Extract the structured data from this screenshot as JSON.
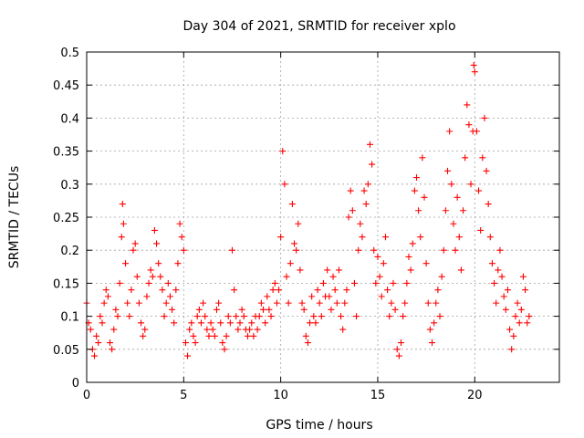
{
  "chart_data": {
    "type": "scatter",
    "title": "Day 304 of 2021, SRMTID for receiver xplo",
    "xlabel": "GPS time / hours",
    "ylabel": "SRMTID / TECUs",
    "xlim": [
      0,
      24.36
    ],
    "ylim": [
      0,
      0.5
    ],
    "x_ticks": [
      0,
      5,
      10,
      15,
      20
    ],
    "x_tick_labels": [
      "0",
      "5",
      "10",
      "15",
      "20"
    ],
    "y_ticks": [
      0,
      0.05,
      0.1,
      0.15,
      0.2,
      0.25,
      0.3,
      0.35,
      0.4,
      0.45,
      0.5
    ],
    "y_tick_labels": [
      "0",
      "0.05",
      "0.1",
      "0.15",
      "0.2",
      "0.25",
      "0.3",
      "0.35",
      "0.4",
      "0.45",
      "0.5"
    ],
    "grid": true,
    "marker": "+",
    "series": [
      {
        "name": "SRMTID",
        "color": "#ff0000",
        "points": [
          [
            0.0,
            0.12
          ],
          [
            0.1,
            0.09
          ],
          [
            0.2,
            0.08
          ],
          [
            0.3,
            0.05
          ],
          [
            0.4,
            0.04
          ],
          [
            0.5,
            0.07
          ],
          [
            0.6,
            0.06
          ],
          [
            0.7,
            0.1
          ],
          [
            0.8,
            0.09
          ],
          [
            0.9,
            0.12
          ],
          [
            1.0,
            0.14
          ],
          [
            1.1,
            0.13
          ],
          [
            1.2,
            0.06
          ],
          [
            1.3,
            0.05
          ],
          [
            1.4,
            0.08
          ],
          [
            1.5,
            0.11
          ],
          [
            1.6,
            0.1
          ],
          [
            1.7,
            0.15
          ],
          [
            1.8,
            0.22
          ],
          [
            1.85,
            0.27
          ],
          [
            1.9,
            0.24
          ],
          [
            2.0,
            0.18
          ],
          [
            2.1,
            0.12
          ],
          [
            2.2,
            0.1
          ],
          [
            2.3,
            0.14
          ],
          [
            2.4,
            0.2
          ],
          [
            2.5,
            0.21
          ],
          [
            2.6,
            0.16
          ],
          [
            2.7,
            0.12
          ],
          [
            2.8,
            0.09
          ],
          [
            2.9,
            0.07
          ],
          [
            3.0,
            0.08
          ],
          [
            3.1,
            0.13
          ],
          [
            3.2,
            0.15
          ],
          [
            3.3,
            0.17
          ],
          [
            3.4,
            0.16
          ],
          [
            3.5,
            0.23
          ],
          [
            3.6,
            0.21
          ],
          [
            3.7,
            0.18
          ],
          [
            3.8,
            0.16
          ],
          [
            3.9,
            0.14
          ],
          [
            4.0,
            0.1
          ],
          [
            4.1,
            0.12
          ],
          [
            4.2,
            0.15
          ],
          [
            4.3,
            0.13
          ],
          [
            4.4,
            0.11
          ],
          [
            4.5,
            0.09
          ],
          [
            4.6,
            0.14
          ],
          [
            4.7,
            0.18
          ],
          [
            4.8,
            0.24
          ],
          [
            4.9,
            0.22
          ],
          [
            5.0,
            0.2
          ],
          [
            5.1,
            0.06
          ],
          [
            5.2,
            0.04
          ],
          [
            5.3,
            0.08
          ],
          [
            5.4,
            0.09
          ],
          [
            5.5,
            0.07
          ],
          [
            5.6,
            0.06
          ],
          [
            5.7,
            0.1
          ],
          [
            5.8,
            0.11
          ],
          [
            5.9,
            0.09
          ],
          [
            6.0,
            0.12
          ],
          [
            6.1,
            0.1
          ],
          [
            6.2,
            0.08
          ],
          [
            6.3,
            0.07
          ],
          [
            6.4,
            0.09
          ],
          [
            6.5,
            0.08
          ],
          [
            6.6,
            0.07
          ],
          [
            6.7,
            0.11
          ],
          [
            6.8,
            0.12
          ],
          [
            6.9,
            0.09
          ],
          [
            7.0,
            0.06
          ],
          [
            7.1,
            0.05
          ],
          [
            7.2,
            0.07
          ],
          [
            7.3,
            0.1
          ],
          [
            7.4,
            0.09
          ],
          [
            7.5,
            0.2
          ],
          [
            7.6,
            0.14
          ],
          [
            7.7,
            0.1
          ],
          [
            7.8,
            0.08
          ],
          [
            7.9,
            0.09
          ],
          [
            8.0,
            0.11
          ],
          [
            8.1,
            0.1
          ],
          [
            8.2,
            0.08
          ],
          [
            8.3,
            0.07
          ],
          [
            8.4,
            0.08
          ],
          [
            8.5,
            0.09
          ],
          [
            8.6,
            0.07
          ],
          [
            8.7,
            0.1
          ],
          [
            8.8,
            0.08
          ],
          [
            8.9,
            0.1
          ],
          [
            9.0,
            0.12
          ],
          [
            9.1,
            0.11
          ],
          [
            9.2,
            0.09
          ],
          [
            9.3,
            0.13
          ],
          [
            9.4,
            0.11
          ],
          [
            9.5,
            0.1
          ],
          [
            9.6,
            0.14
          ],
          [
            9.7,
            0.15
          ],
          [
            9.8,
            0.12
          ],
          [
            9.9,
            0.14
          ],
          [
            10.0,
            0.22
          ],
          [
            10.1,
            0.35
          ],
          [
            10.2,
            0.3
          ],
          [
            10.3,
            0.16
          ],
          [
            10.4,
            0.12
          ],
          [
            10.5,
            0.18
          ],
          [
            10.6,
            0.27
          ],
          [
            10.7,
            0.21
          ],
          [
            10.8,
            0.2
          ],
          [
            10.9,
            0.24
          ],
          [
            11.0,
            0.17
          ],
          [
            11.1,
            0.12
          ],
          [
            11.2,
            0.11
          ],
          [
            11.3,
            0.07
          ],
          [
            11.4,
            0.06
          ],
          [
            11.5,
            0.09
          ],
          [
            11.6,
            0.13
          ],
          [
            11.7,
            0.1
          ],
          [
            11.8,
            0.09
          ],
          [
            11.9,
            0.14
          ],
          [
            12.0,
            0.12
          ],
          [
            12.1,
            0.1
          ],
          [
            12.2,
            0.15
          ],
          [
            12.3,
            0.13
          ],
          [
            12.4,
            0.17
          ],
          [
            12.5,
            0.13
          ],
          [
            12.6,
            0.11
          ],
          [
            12.7,
            0.16
          ],
          [
            12.8,
            0.14
          ],
          [
            12.9,
            0.12
          ],
          [
            13.0,
            0.17
          ],
          [
            13.1,
            0.1
          ],
          [
            13.2,
            0.08
          ],
          [
            13.3,
            0.12
          ],
          [
            13.4,
            0.14
          ],
          [
            13.5,
            0.25
          ],
          [
            13.6,
            0.29
          ],
          [
            13.7,
            0.26
          ],
          [
            13.8,
            0.15
          ],
          [
            13.9,
            0.1
          ],
          [
            14.0,
            0.2
          ],
          [
            14.1,
            0.24
          ],
          [
            14.2,
            0.22
          ],
          [
            14.3,
            0.29
          ],
          [
            14.4,
            0.27
          ],
          [
            14.5,
            0.3
          ],
          [
            14.6,
            0.36
          ],
          [
            14.7,
            0.33
          ],
          [
            14.8,
            0.2
          ],
          [
            14.9,
            0.15
          ],
          [
            15.0,
            0.19
          ],
          [
            15.1,
            0.16
          ],
          [
            15.2,
            0.13
          ],
          [
            15.3,
            0.18
          ],
          [
            15.4,
            0.22
          ],
          [
            15.5,
            0.14
          ],
          [
            15.6,
            0.1
          ],
          [
            15.7,
            0.12
          ],
          [
            15.8,
            0.15
          ],
          [
            15.9,
            0.11
          ],
          [
            16.0,
            0.05
          ],
          [
            16.1,
            0.04
          ],
          [
            16.2,
            0.06
          ],
          [
            16.3,
            0.1
          ],
          [
            16.4,
            0.12
          ],
          [
            16.5,
            0.15
          ],
          [
            16.6,
            0.19
          ],
          [
            16.7,
            0.17
          ],
          [
            16.8,
            0.21
          ],
          [
            16.9,
            0.29
          ],
          [
            17.0,
            0.31
          ],
          [
            17.1,
            0.26
          ],
          [
            17.2,
            0.22
          ],
          [
            17.3,
            0.34
          ],
          [
            17.4,
            0.28
          ],
          [
            17.5,
            0.18
          ],
          [
            17.6,
            0.12
          ],
          [
            17.7,
            0.08
          ],
          [
            17.8,
            0.06
          ],
          [
            17.9,
            0.09
          ],
          [
            18.0,
            0.12
          ],
          [
            18.1,
            0.14
          ],
          [
            18.2,
            0.1
          ],
          [
            18.3,
            0.16
          ],
          [
            18.4,
            0.2
          ],
          [
            18.5,
            0.26
          ],
          [
            18.6,
            0.32
          ],
          [
            18.7,
            0.38
          ],
          [
            18.8,
            0.3
          ],
          [
            18.9,
            0.24
          ],
          [
            19.0,
            0.2
          ],
          [
            19.1,
            0.28
          ],
          [
            19.2,
            0.22
          ],
          [
            19.3,
            0.17
          ],
          [
            19.4,
            0.26
          ],
          [
            19.5,
            0.34
          ],
          [
            19.6,
            0.42
          ],
          [
            19.7,
            0.39
          ],
          [
            19.8,
            0.3
          ],
          [
            19.9,
            0.38
          ],
          [
            19.95,
            0.48
          ],
          [
            20.0,
            0.47
          ],
          [
            20.1,
            0.38
          ],
          [
            20.2,
            0.29
          ],
          [
            20.3,
            0.23
          ],
          [
            20.4,
            0.34
          ],
          [
            20.5,
            0.4
          ],
          [
            20.6,
            0.32
          ],
          [
            20.7,
            0.27
          ],
          [
            20.8,
            0.22
          ],
          [
            20.9,
            0.18
          ],
          [
            21.0,
            0.15
          ],
          [
            21.1,
            0.12
          ],
          [
            21.2,
            0.17
          ],
          [
            21.3,
            0.2
          ],
          [
            21.4,
            0.16
          ],
          [
            21.5,
            0.13
          ],
          [
            21.6,
            0.11
          ],
          [
            21.7,
            0.14
          ],
          [
            21.8,
            0.08
          ],
          [
            21.9,
            0.05
          ],
          [
            22.0,
            0.07
          ],
          [
            22.1,
            0.1
          ],
          [
            22.2,
            0.12
          ],
          [
            22.3,
            0.09
          ],
          [
            22.4,
            0.11
          ],
          [
            22.5,
            0.16
          ],
          [
            22.6,
            0.14
          ],
          [
            22.7,
            0.09
          ],
          [
            22.8,
            0.1
          ]
        ]
      }
    ]
  }
}
